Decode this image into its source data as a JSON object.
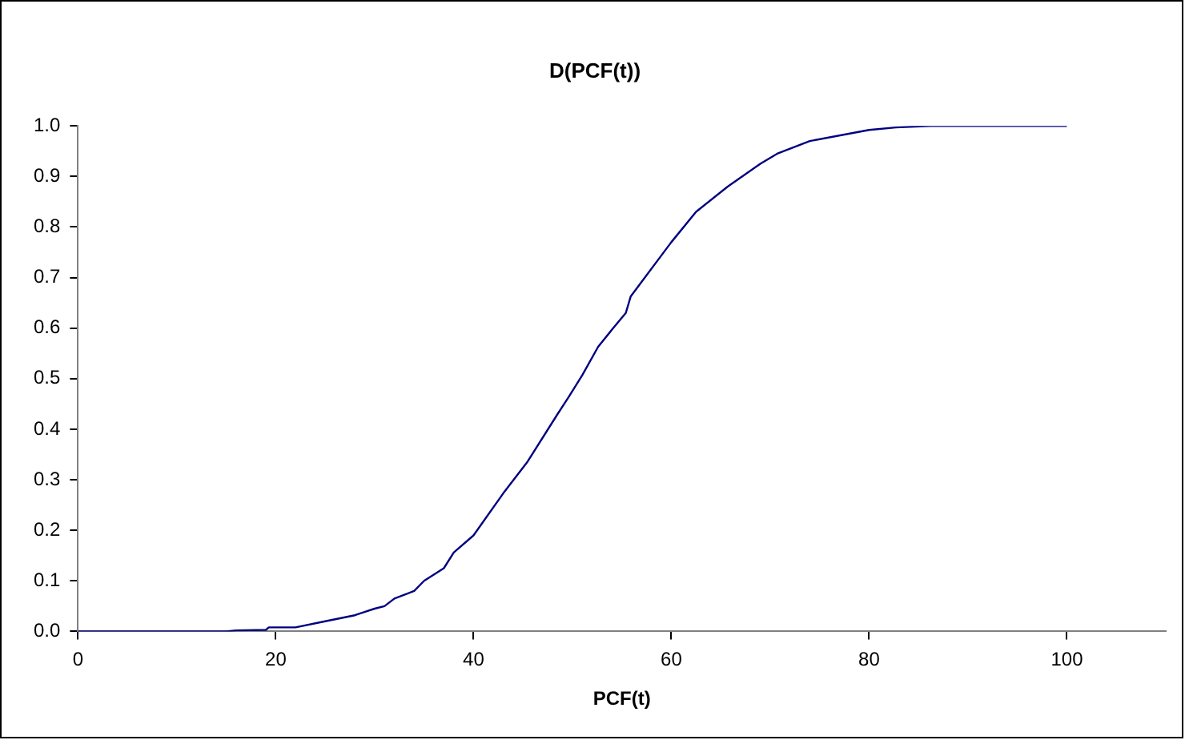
{
  "chart_data": {
    "type": "line",
    "title": "D(PCF(t))",
    "xlabel": "PCF(t)",
    "x": [
      0,
      15,
      16,
      19,
      19.3,
      22,
      25,
      28,
      30,
      31,
      32,
      34,
      35,
      37,
      38,
      40,
      43,
      45.4,
      48.5,
      49.6,
      51,
      52.6,
      54,
      55.4,
      55.9,
      60,
      62.5,
      65.7,
      69,
      70.7,
      74,
      80,
      82.7,
      86.2,
      100
    ],
    "series": [
      {
        "color": "#000080",
        "values": [
          0,
          0,
          0.002,
          0.003,
          0.008,
          0.008,
          0.02,
          0.032,
          0.045,
          0.05,
          0.065,
          0.08,
          0.1,
          0.125,
          0.156,
          0.19,
          0.273,
          0.334,
          0.43,
          0.463,
          0.507,
          0.563,
          0.597,
          0.63,
          0.663,
          0.77,
          0.83,
          0.88,
          0.925,
          0.945,
          0.97,
          0.992,
          0.997,
          1.0,
          1.0
        ]
      }
    ],
    "xlim": [
      0,
      110
    ],
    "xticks": [
      0,
      20,
      40,
      60,
      80,
      100
    ],
    "ylim": [
      0,
      1
    ],
    "yticks": [
      {
        "value": 0,
        "label": "0.0"
      },
      {
        "value": 0.1,
        "label": "0.1"
      },
      {
        "value": 0.2,
        "label": "0.2"
      },
      {
        "value": 0.3,
        "label": "0.3"
      },
      {
        "value": 0.4,
        "label": "0.4"
      },
      {
        "value": 0.5,
        "label": "0.5"
      },
      {
        "value": 0.6,
        "label": "0.6"
      },
      {
        "value": 0.7,
        "label": "0.7"
      },
      {
        "value": 0.8,
        "label": "0.8"
      },
      {
        "value": 0.9,
        "label": "0.9"
      },
      {
        "value": 1,
        "label": "1.0"
      }
    ],
    "grid": false,
    "legend": false,
    "marker": "none",
    "line_style": "solid"
  }
}
